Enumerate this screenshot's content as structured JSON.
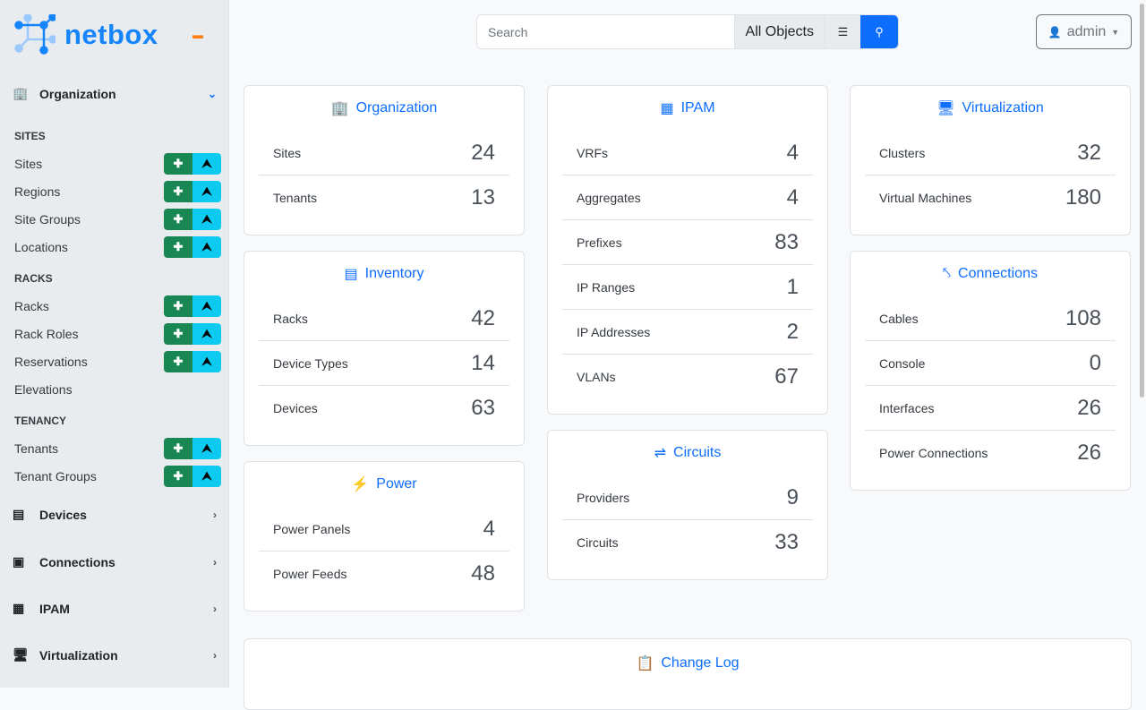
{
  "brand": {
    "name": "netbox",
    "accent": "#1685fc"
  },
  "sidebar": {
    "groups": [
      {
        "label": "Organization",
        "icon": "building-icon",
        "expanded": true,
        "sections": [
          {
            "title": "SITES",
            "items": [
              {
                "label": "Sites",
                "buttons": true
              },
              {
                "label": "Regions",
                "buttons": true
              },
              {
                "label": "Site Groups",
                "buttons": true
              },
              {
                "label": "Locations",
                "buttons": true
              }
            ]
          },
          {
            "title": "RACKS",
            "items": [
              {
                "label": "Racks",
                "buttons": true
              },
              {
                "label": "Rack Roles",
                "buttons": true
              },
              {
                "label": "Reservations",
                "buttons": true
              },
              {
                "label": "Elevations",
                "buttons": false
              }
            ]
          },
          {
            "title": "TENANCY",
            "items": [
              {
                "label": "Tenants",
                "buttons": true
              },
              {
                "label": "Tenant Groups",
                "buttons": true
              }
            ]
          }
        ]
      },
      {
        "label": "Devices",
        "icon": "server-icon",
        "expanded": false
      },
      {
        "label": "Connections",
        "icon": "ethernet-icon",
        "expanded": false
      },
      {
        "label": "IPAM",
        "icon": "ipam-icon",
        "expanded": false
      },
      {
        "label": "Virtualization",
        "icon": "monitor-icon",
        "expanded": false
      }
    ]
  },
  "search": {
    "placeholder": "Search",
    "value": "",
    "scope": "All Objects"
  },
  "user": {
    "name": "admin"
  },
  "columns": [
    [
      {
        "title": "Organization",
        "icon": "building-icon",
        "rows": [
          [
            "Sites",
            "24"
          ],
          [
            "Tenants",
            "13"
          ]
        ]
      },
      {
        "title": "Inventory",
        "icon": "server-icon",
        "rows": [
          [
            "Racks",
            "42"
          ],
          [
            "Device Types",
            "14"
          ],
          [
            "Devices",
            "63"
          ]
        ]
      },
      {
        "title": "Power",
        "icon": "lightning-icon",
        "rows": [
          [
            "Power Panels",
            "4"
          ],
          [
            "Power Feeds",
            "48"
          ]
        ]
      }
    ],
    [
      {
        "title": "IPAM",
        "icon": "ipam-icon",
        "rows": [
          [
            "VRFs",
            "4"
          ],
          [
            "Aggregates",
            "4"
          ],
          [
            "Prefixes",
            "83"
          ],
          [
            "IP Ranges",
            "1"
          ],
          [
            "IP Addresses",
            "2"
          ],
          [
            "VLANs",
            "67"
          ]
        ]
      },
      {
        "title": "Circuits",
        "icon": "transit-icon",
        "rows": [
          [
            "Providers",
            "9"
          ],
          [
            "Circuits",
            "33"
          ]
        ]
      }
    ],
    [
      {
        "title": "Virtualization",
        "icon": "monitor-icon",
        "rows": [
          [
            "Clusters",
            "32"
          ],
          [
            "Virtual Machines",
            "180"
          ]
        ]
      },
      {
        "title": "Connections",
        "icon": "cable-icon",
        "rows": [
          [
            "Cables",
            "108"
          ],
          [
            "Console",
            "0"
          ],
          [
            "Interfaces",
            "26"
          ],
          [
            "Power Connections",
            "26"
          ]
        ]
      }
    ]
  ],
  "changelog": {
    "title": "Change Log",
    "icon": "clipboard-clock-icon"
  }
}
